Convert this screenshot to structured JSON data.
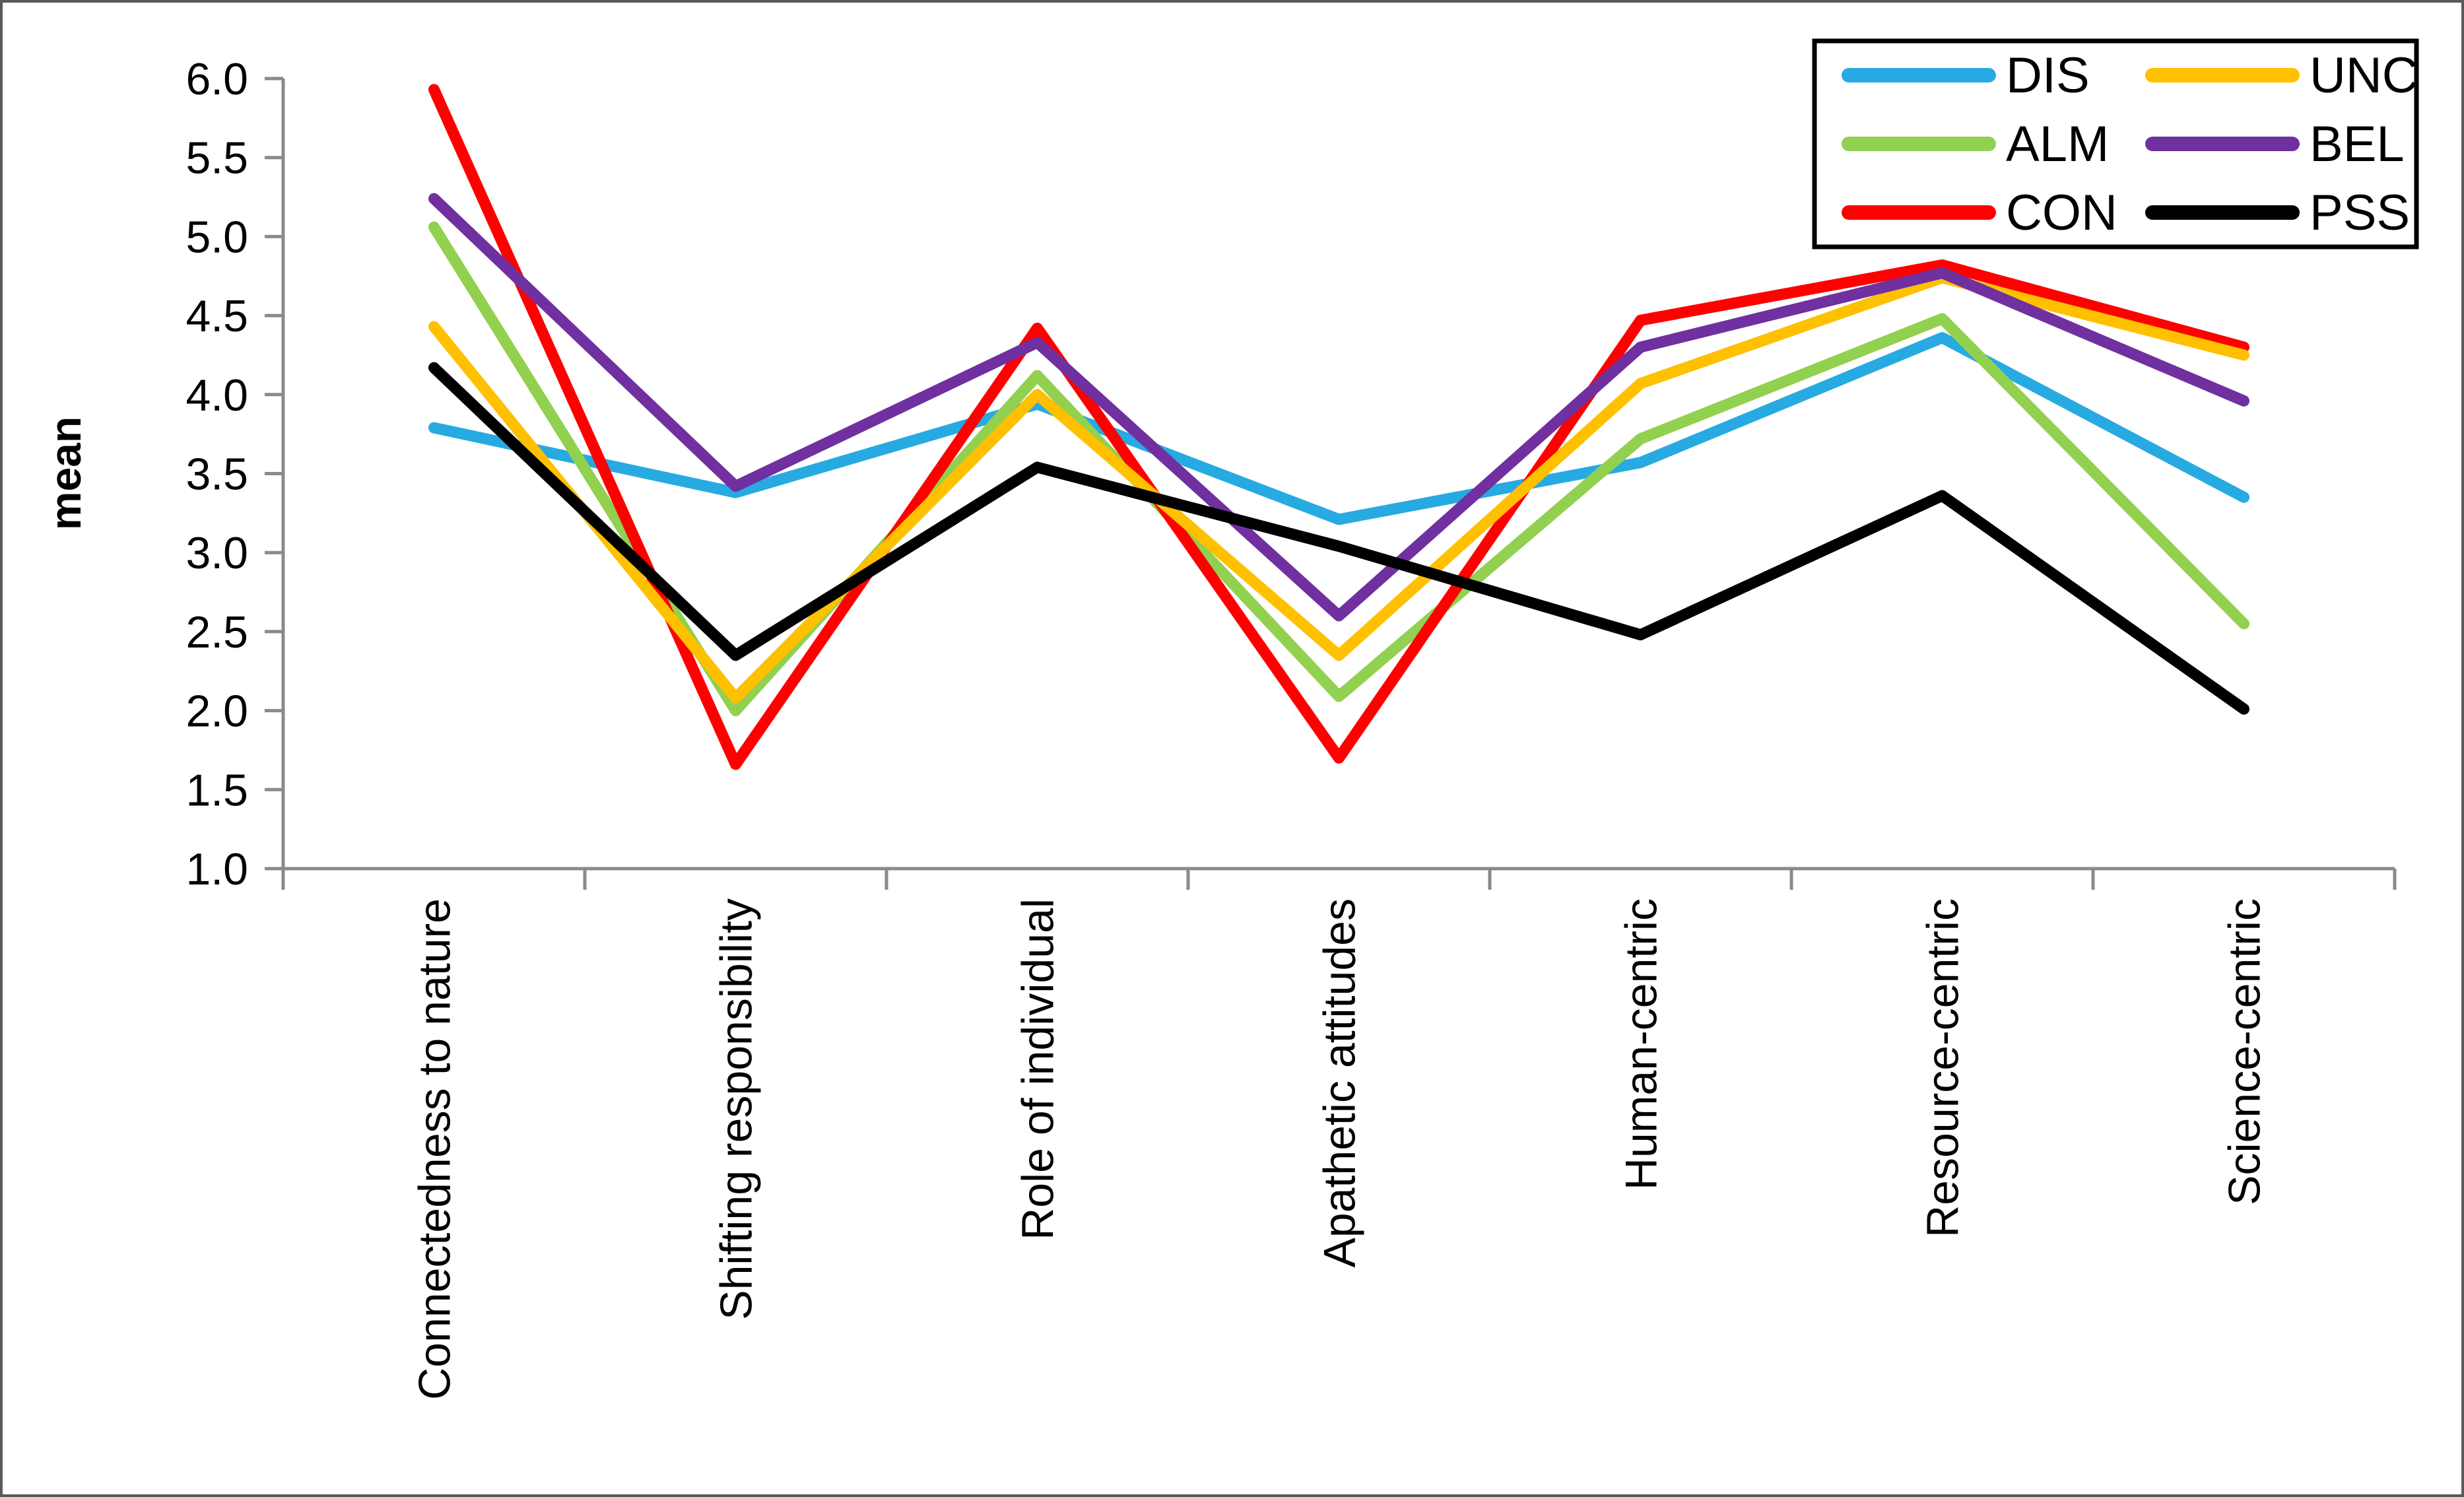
{
  "chart_data": {
    "type": "line",
    "title": "",
    "ylabel": "mean",
    "xlabel": "",
    "ylim": [
      1.0,
      6.0
    ],
    "ytick_step": 0.5,
    "ytick_labels": [
      "1.0",
      "1.5",
      "2.0",
      "2.5",
      "3.0",
      "3.5",
      "4.0",
      "4.5",
      "5.0",
      "5.5",
      "6.0"
    ],
    "grid": false,
    "categories": [
      "Connectedness to nature",
      "Shifting responsibility",
      "Role of individual",
      "Apathetic attitudes",
      "Human-centric",
      "Resource-centric",
      "Science-centric"
    ],
    "series": [
      {
        "name": "DIS",
        "color": "#27AAE1",
        "values": [
          3.79,
          3.38,
          3.94,
          3.21,
          3.57,
          4.36,
          3.35
        ]
      },
      {
        "name": "ALM",
        "color": "#92D050",
        "values": [
          5.06,
          2.0,
          4.12,
          2.09,
          3.72,
          4.48,
          2.55
        ]
      },
      {
        "name": "CON",
        "color": "#FF0000",
        "values": [
          5.93,
          1.66,
          4.42,
          1.7,
          4.47,
          4.82,
          4.3
        ]
      },
      {
        "name": "UNC",
        "color": "#FFC000",
        "values": [
          4.43,
          2.08,
          4.0,
          2.35,
          4.07,
          4.74,
          4.25
        ]
      },
      {
        "name": "BEL",
        "color": "#7030A0",
        "values": [
          5.24,
          3.42,
          4.33,
          2.6,
          4.3,
          4.77,
          3.96
        ]
      },
      {
        "name": "PSS",
        "color": "#000000",
        "values": [
          4.17,
          2.35,
          3.54,
          3.04,
          2.48,
          3.36,
          2.01
        ]
      }
    ],
    "legend": {
      "position": "top-right",
      "columns": [
        [
          "DIS",
          "ALM",
          "CON"
        ],
        [
          "UNC",
          "BEL",
          "PSS"
        ]
      ]
    },
    "axis_color": "#8A8A8A",
    "figure_border_color": "#595959"
  }
}
